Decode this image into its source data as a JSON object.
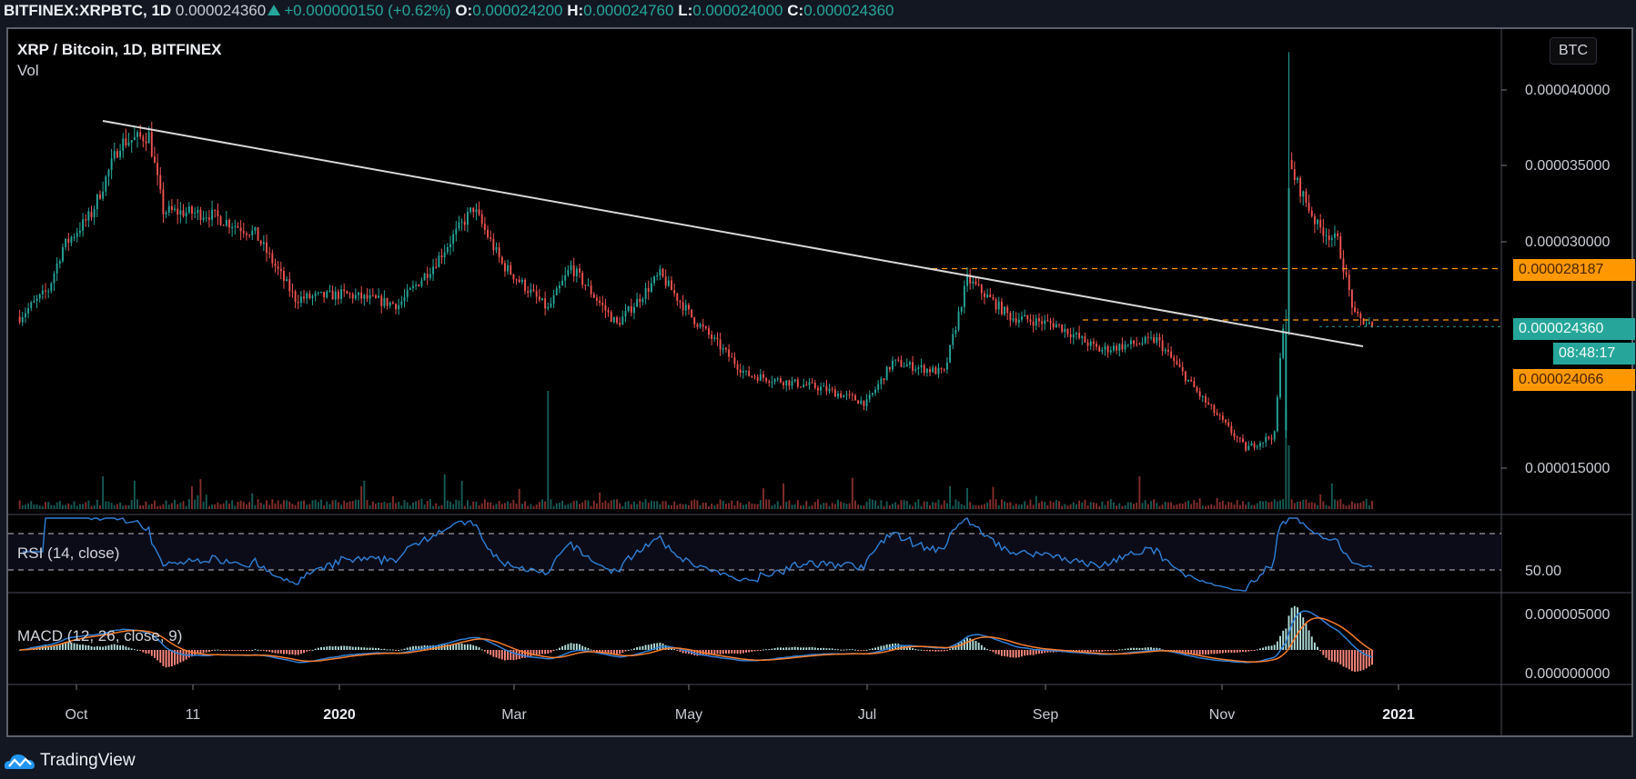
{
  "header": {
    "symbol": "BITFINEX:XRPBTC, 1D",
    "last_price": "0.000024360",
    "change": "+0.000000150 (+0.62%)",
    "change_direction": "up",
    "ohlc": {
      "o_label": "O:",
      "o": "0.000024200",
      "h_label": "H:",
      "h": "0.000024760",
      "l_label": "L:",
      "l": "0.000024000",
      "c_label": "C:",
      "c": "0.000024360"
    }
  },
  "legend": {
    "title": "XRP / Bitcoin, 1D, BITFINEX",
    "volume": "Vol",
    "rsi": "RSI (14, close)",
    "macd": "MACD (12, 26, close, 9)"
  },
  "currency_button": "BTC",
  "price_axis": {
    "labels": [
      "0.000040000",
      "0.000035000",
      "0.000030000",
      "0.000015000"
    ],
    "tags": {
      "resistance": "0.000028187",
      "last": "0.000024360",
      "countdown": "08:48:17",
      "support": "0.000024066"
    }
  },
  "rsi_axis": {
    "label": "50.00"
  },
  "macd_axis": {
    "labels": [
      "0.000005000",
      "0.000000000"
    ]
  },
  "time_axis": {
    "labels": [
      {
        "text": "Oct",
        "bold": false
      },
      {
        "text": "11",
        "bold": false
      },
      {
        "text": "2020",
        "bold": true
      },
      {
        "text": "Mar",
        "bold": false
      },
      {
        "text": "May",
        "bold": false
      },
      {
        "text": "Jul",
        "bold": false
      },
      {
        "text": "Sep",
        "bold": false
      },
      {
        "text": "Nov",
        "bold": false
      },
      {
        "text": "2021",
        "bold": true
      }
    ]
  },
  "branding": {
    "logo_text": "TradingView"
  },
  "colors": {
    "up": "#26a69a",
    "down": "#ef5350",
    "trendline": "#d8d8d8",
    "level": "#ff9800",
    "rsi": "#2f7fd6",
    "macd": "#2f7fd6",
    "signal": "#f57c2c",
    "background": "#000000",
    "chrome": "#131722"
  },
  "chart_data": {
    "type": "candlestick",
    "title": "XRP / Bitcoin, 1D, BITFINEX",
    "xlabel": "",
    "ylabel": "BTC",
    "ylim": [
      1.15e-05,
      4.3e-05
    ],
    "x_ticks": [
      "Oct",
      "11",
      "2020",
      "Mar",
      "May",
      "Jul",
      "Sep",
      "Nov",
      "2021"
    ],
    "y_ticks": [
      1.5e-05,
      2e-05,
      2.5e-05,
      3e-05,
      3.5e-05,
      4e-05
    ],
    "close_path": [
      {
        "date": "2019-09-10",
        "close": 2.5e-05
      },
      {
        "date": "2019-09-20",
        "close": 2.68e-05
      },
      {
        "date": "2019-09-25",
        "close": 2.96e-05
      },
      {
        "date": "2019-10-05",
        "close": 3.18e-05
      },
      {
        "date": "2019-10-15",
        "close": 3.65e-05
      },
      {
        "date": "2019-10-25",
        "close": 3.7e-05
      },
      {
        "date": "2019-10-30",
        "close": 3.2e-05
      },
      {
        "date": "2019-11-15",
        "close": 3.18e-05
      },
      {
        "date": "2019-12-01",
        "close": 3.05e-05
      },
      {
        "date": "2019-12-15",
        "close": 2.62e-05
      },
      {
        "date": "2020-01-01",
        "close": 2.65e-05
      },
      {
        "date": "2020-01-20",
        "close": 2.58e-05
      },
      {
        "date": "2020-02-01",
        "close": 2.84e-05
      },
      {
        "date": "2020-02-15",
        "close": 3.22e-05
      },
      {
        "date": "2020-02-25",
        "close": 2.85e-05
      },
      {
        "date": "2020-03-12",
        "close": 2.55e-05
      },
      {
        "date": "2020-03-20",
        "close": 2.83e-05
      },
      {
        "date": "2020-04-05",
        "close": 2.45e-05
      },
      {
        "date": "2020-04-20",
        "close": 2.78e-05
      },
      {
        "date": "2020-05-01",
        "close": 2.5e-05
      },
      {
        "date": "2020-05-20",
        "close": 2.12e-05
      },
      {
        "date": "2020-06-15",
        "close": 2.03e-05
      },
      {
        "date": "2020-07-01",
        "close": 1.93e-05
      },
      {
        "date": "2020-07-10",
        "close": 2.2e-05
      },
      {
        "date": "2020-07-28",
        "close": 2.13e-05
      },
      {
        "date": "2020-08-05",
        "close": 2.75e-05
      },
      {
        "date": "2020-08-20",
        "close": 2.5e-05
      },
      {
        "date": "2020-09-05",
        "close": 2.45e-05
      },
      {
        "date": "2020-09-20",
        "close": 2.28e-05
      },
      {
        "date": "2020-10-10",
        "close": 2.35e-05
      },
      {
        "date": "2020-10-25",
        "close": 1.98e-05
      },
      {
        "date": "2020-11-10",
        "close": 1.63e-05
      },
      {
        "date": "2020-11-20",
        "close": 1.72e-05
      },
      {
        "date": "2020-11-24",
        "close": 2.7e-05
      },
      {
        "date": "2020-11-25",
        "close": 3.5e-05
      },
      {
        "date": "2020-12-05",
        "close": 3.1e-05
      },
      {
        "date": "2020-12-12",
        "close": 3e-05
      },
      {
        "date": "2020-12-18",
        "close": 2.5e-05
      },
      {
        "date": "2020-12-24",
        "close": 2.44e-05
      }
    ],
    "notable": {
      "peak_high": 4.25e-05,
      "last_close": 2.436e-05,
      "horizontal_levels": [
        2.8187e-05,
        2.4066e-05
      ],
      "descending_trendline": {
        "from": [
          "2019-10-15",
          3.78e-05
        ],
        "to": [
          "2020-12-31",
          2.27e-05
        ]
      }
    },
    "indicators": {
      "rsi": {
        "period": 14,
        "bands": [
          70,
          30
        ],
        "last_approx": 57
      },
      "macd": {
        "fast": 12,
        "slow": 26,
        "signal": 9,
        "peak_approx": 4.2e-06
      }
    }
  }
}
